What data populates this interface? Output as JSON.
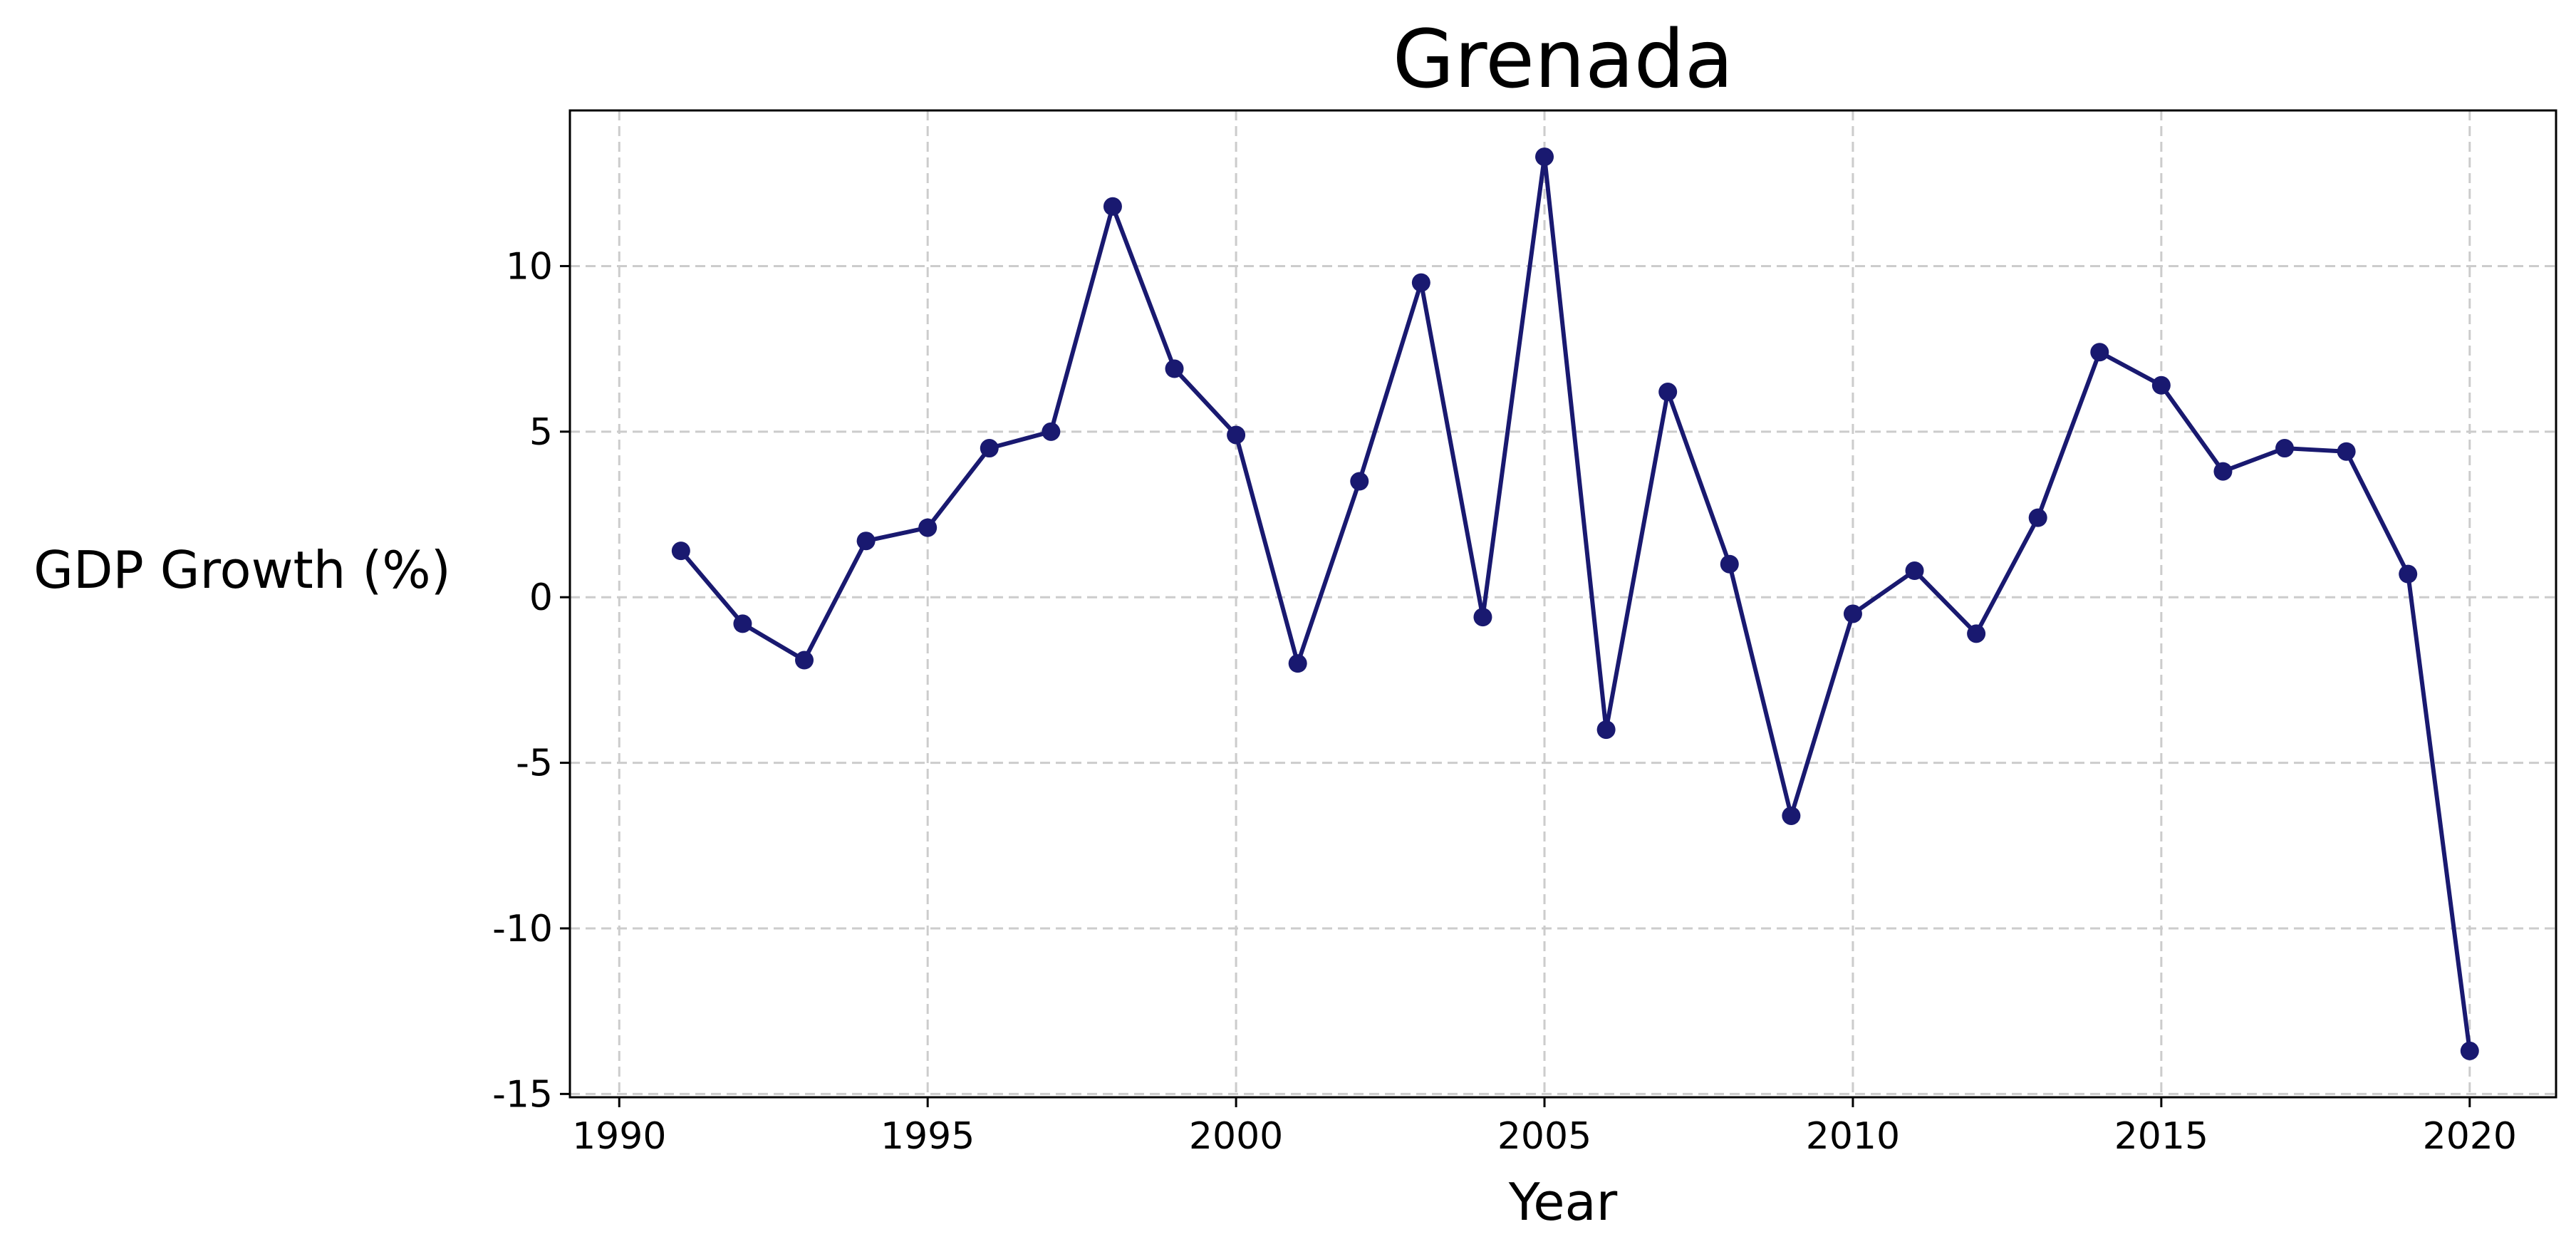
{
  "chart_data": {
    "type": "line",
    "title": "Grenada",
    "xlabel": "Year",
    "ylabel": "GDP Growth (%)",
    "xlim": [
      1989.2,
      2021.4
    ],
    "ylim": [
      -15.1,
      14.7
    ],
    "xticks": [
      1990,
      1995,
      2000,
      2005,
      2010,
      2015,
      2020
    ],
    "yticks": [
      -15,
      -10,
      -5,
      0,
      5,
      10
    ],
    "grid": true,
    "series": [
      {
        "color": "#191970",
        "x": [
          1991,
          1992,
          1993,
          1994,
          1995,
          1996,
          1997,
          1998,
          1999,
          2000,
          2001,
          2002,
          2003,
          2004,
          2005,
          2006,
          2007,
          2008,
          2009,
          2010,
          2011,
          2012,
          2013,
          2014,
          2015,
          2016,
          2017,
          2018,
          2019,
          2020
        ],
        "y": [
          1.4,
          -0.8,
          -1.9,
          1.7,
          2.1,
          4.5,
          5.0,
          11.8,
          6.9,
          4.9,
          -2.0,
          3.5,
          9.5,
          -0.6,
          13.3,
          -4.0,
          6.2,
          1.0,
          -6.6,
          -0.5,
          0.8,
          -1.1,
          2.4,
          7.4,
          6.4,
          3.8,
          4.5,
          4.4,
          0.7,
          -13.7
        ]
      }
    ]
  }
}
